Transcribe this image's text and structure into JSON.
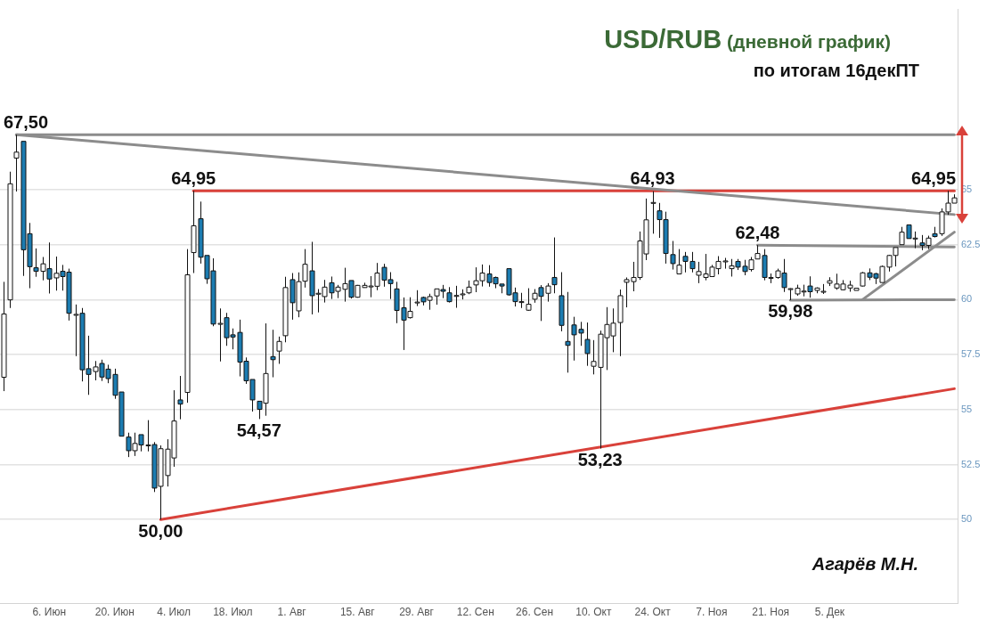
{
  "chart_data": {
    "type": "candlestick",
    "title": "USD/RUB (дневной график)",
    "subtitle": "по итогам 16декПТ",
    "annotations": [
      {
        "text": "67,50",
        "y": 67.5
      },
      {
        "text": "64,95",
        "y": 64.95
      },
      {
        "text": "50,00",
        "y": 50.0
      },
      {
        "text": "54,57",
        "y": 54.57
      },
      {
        "text": "53,23",
        "y": 53.23
      },
      {
        "text": "64,93",
        "y": 64.93
      },
      {
        "text": "62,48",
        "y": 62.48
      },
      {
        "text": "59,98",
        "y": 59.98
      },
      {
        "text": "64,95",
        "y": 64.95
      },
      "Агарёв М.Н."
    ],
    "colors": [
      "#ffffff",
      "#ffffff",
      "#ffffff",
      "#1c7cb1",
      "#1c7cb1",
      "#1c7cb1",
      "#ffffff",
      "#1c7cb1",
      "#ffffff",
      "#1c7cb1",
      "#1c7cb1",
      "#ffffff",
      "#1c7cb1",
      "#1c7cb1",
      "#ffffff",
      "#1c7cb1",
      "#1c7cb1",
      "#1c7cb1",
      "#1c7cb1",
      "#1c7cb1",
      "#ffffff",
      "#1c7cb1",
      "#ffffff",
      "#1c7cb1",
      "#ffffff",
      "#ffffff",
      "#ffffff",
      "#1c7cb1",
      "#ffffff",
      "#ffffff",
      "#1c7cb1",
      "#1c7cb1",
      "#1c7cb1",
      "#ffffff",
      "#1c7cb1",
      "#1c7cb1",
      "#1c7cb1",
      "#1c7cb1",
      "#1c7cb1",
      "#1c7cb1",
      "#ffffff",
      "#1c7cb1",
      "#ffffff",
      "#ffffff",
      "#1c7cb1",
      "#ffffff",
      "#ffffff",
      "#1c7cb1",
      "#ffffff",
      "#ffffff",
      "#1c7cb1",
      "#ffffff",
      "#ffffff",
      "#1c7cb1",
      "#ffffff",
      "#ffffff",
      "#ffffff",
      "#ffffff",
      "#1c7cb1",
      "#1c7cb1",
      "#1c7cb1",
      "#1c7cb1",
      "#ffffff",
      "#ffffff",
      "#1c7cb1",
      "#ffffff",
      "#ffffff",
      "#1c7cb1",
      "#1c7cb1",
      "#ffffff",
      "#ffffff",
      "#ffffff",
      "#ffffff",
      "#ffffff",
      "#1c7cb1",
      "#1c7cb1",
      "#1c7cb1",
      "#1c7cb1",
      "#1c7cb1",
      "#ffffff",
      "#ffffff",
      "#ffffff",
      "#1c7cb1",
      "#ffffff",
      "#1c7cb1",
      "#1c7cb1",
      "#1c7cb1",
      "#1c7cb1",
      "#1c7cb1",
      "#1c7cb1",
      "#ffffff",
      "#ffffff",
      "#ffffff",
      "#ffffff",
      "#ffffff",
      "#ffffff",
      "#ffffff",
      "#ffffff",
      "#ffffff",
      "#ffffff",
      "#1c7cb1",
      "#1c7cb1",
      "#1c7cb1",
      "#ffffff",
      "#1c7cb1",
      "#1c7cb1",
      "#ffffff",
      "#ffffff",
      "#ffffff",
      "#ffffff",
      "#ffffff",
      "#ffffff",
      "#1c7cb1",
      "#1c7cb1",
      "#ffffff",
      "#ffffff",
      "#1c7cb1",
      "#ffffff",
      "#ffffff",
      "#1c7cb1",
      "#ffffff",
      "#ffffff",
      "#ffffff",
      "#1c7cb1",
      "#ffffff",
      "#ffffff",
      "#ffffff",
      "#ffffff",
      "#ffffff",
      "#ffffff",
      "#ffffff",
      "#ffffff",
      "#1c7cb1",
      "#1c7cb1",
      "#ffffff",
      "#ffffff",
      "#ffffff",
      "#ffffff",
      "#1c7cb1",
      "#ffffff",
      "#1c7cb1",
      "#ffffff",
      "#1c7cb1",
      "#ffffff",
      "#ffffff",
      "#ffffff"
    ],
    "marker": "none",
    "grid": "y",
    "ylim": [
      46.2,
      73.2
    ],
    "categories": [
      null,
      null,
      null,
      null,
      null,
      null,
      null,
      "6. Июн",
      null,
      null,
      null,
      null,
      null,
      null,
      null,
      null,
      null,
      "20. Июн",
      null,
      null,
      null,
      null,
      null,
      null,
      null,
      null,
      "4. Июл",
      null,
      null,
      null,
      null,
      null,
      null,
      null,
      null,
      "18. Июл",
      null,
      null,
      null,
      null,
      null,
      null,
      null,
      null,
      "1. Авг",
      null,
      null,
      null,
      null,
      null,
      null,
      null,
      null,
      null,
      "15. Авг",
      null,
      null,
      null,
      null,
      null,
      null,
      null,
      null,
      "29. Авг",
      null,
      null,
      null,
      null,
      null,
      null,
      null,
      null,
      "12. Сен",
      null,
      null,
      null,
      null,
      null,
      null,
      null,
      null,
      "26. Сен",
      null,
      null,
      null,
      null,
      null,
      null,
      null,
      null,
      "10. Окт",
      null,
      null,
      null,
      null,
      null,
      null,
      null,
      null,
      "24. Окт",
      null,
      null,
      null,
      null,
      null,
      null,
      null,
      null,
      "7. Ноя",
      null,
      null,
      null,
      null,
      null,
      null,
      null,
      null,
      "21. Ноя",
      null,
      null,
      null,
      null,
      null,
      null,
      null,
      null,
      "5. Дек",
      null,
      null,
      null,
      null,
      null,
      null,
      null,
      null,
      null,
      null,
      null,
      null,
      null,
      null,
      null,
      null,
      null,
      null,
      null
    ],
    "yticks": [
      50,
      52.5,
      55,
      57.5,
      60,
      62.5,
      65
    ],
    "ohlc": [
      [
        56.47,
        60.81,
        55.84,
        59.35
      ],
      [
        59.99,
        65.82,
        59.62,
        65.27
      ],
      [
        66.44,
        67.5,
        64.92,
        66.71
      ],
      [
        67.2,
        67.2,
        61.08,
        62.27
      ],
      [
        63.0,
        63.49,
        60.52,
        61.5
      ],
      [
        61.45,
        62.33,
        61.04,
        61.29
      ],
      [
        61.29,
        61.94,
        60.88,
        61.63
      ],
      [
        61.41,
        62.6,
        60.28,
        60.94
      ],
      [
        60.99,
        61.96,
        60.41,
        61.2
      ],
      [
        61.29,
        61.58,
        60.41,
        61.05
      ],
      [
        61.25,
        61.41,
        59.05,
        59.38
      ],
      [
        59.33,
        59.78,
        57.43,
        59.33
      ],
      [
        59.38,
        59.62,
        56.28,
        56.81
      ],
      [
        56.86,
        58.36,
        55.67,
        56.6
      ],
      [
        56.73,
        57.21,
        56.33,
        56.94
      ],
      [
        57.1,
        57.27,
        56.3,
        56.48
      ],
      [
        56.84,
        57.04,
        56.2,
        56.41
      ],
      [
        56.6,
        56.86,
        55.49,
        55.65
      ],
      [
        55.8,
        55.8,
        53.79,
        53.79
      ],
      [
        53.75,
        53.95,
        52.84,
        53.13
      ],
      [
        53.13,
        53.95,
        52.89,
        53.46
      ],
      [
        53.86,
        53.86,
        53.1,
        53.39
      ],
      [
        53.39,
        54.52,
        53.1,
        53.39
      ],
      [
        53.41,
        53.52,
        51.25,
        51.43
      ],
      [
        51.51,
        53.37,
        50.0,
        53.22
      ],
      [
        52.0,
        53.65,
        51.5,
        53.2
      ],
      [
        52.8,
        55.88,
        52.4,
        54.48
      ],
      [
        55.44,
        56.53,
        54.56,
        55.25
      ],
      [
        55.78,
        62.3,
        55.31,
        61.13
      ],
      [
        62.14,
        64.95,
        61.21,
        63.36
      ],
      [
        63.68,
        64.46,
        61.64,
        61.93
      ],
      [
        62.01,
        62.01,
        60.72,
        60.95
      ],
      [
        61.31,
        61.88,
        58.79,
        58.89
      ],
      [
        58.92,
        59.6,
        57.19,
        58.92
      ],
      [
        59.18,
        59.4,
        57.9,
        58.27
      ],
      [
        58.4,
        58.69,
        57.74,
        58.3
      ],
      [
        58.51,
        59.09,
        56.51,
        57.16
      ],
      [
        57.2,
        57.37,
        56.17,
        56.31
      ],
      [
        56.37,
        56.37,
        54.91,
        55.44
      ],
      [
        55.38,
        55.38,
        54.57,
        55.01
      ],
      [
        55.29,
        58.92,
        54.72,
        56.64
      ],
      [
        57.41,
        58.63,
        56.47,
        57.27
      ],
      [
        57.66,
        58.32,
        57.08,
        58.1
      ],
      [
        58.36,
        61.04,
        58.06,
        60.55
      ],
      [
        60.91,
        61.21,
        59.09,
        59.86
      ],
      [
        59.49,
        61.24,
        59.2,
        60.82
      ],
      [
        60.84,
        62.3,
        60.55,
        61.61
      ],
      [
        61.31,
        62.63,
        59.33,
        60.18
      ],
      [
        60.29,
        60.48,
        59.42,
        60.29
      ],
      [
        60.14,
        60.9,
        59.87,
        60.57
      ],
      [
        60.77,
        61.05,
        60.03,
        60.31
      ],
      [
        60.38,
        60.67,
        60.07,
        60.57
      ],
      [
        60.47,
        61.45,
        59.91,
        60.73
      ],
      [
        60.87,
        60.87,
        60.05,
        60.11
      ],
      [
        60.11,
        60.67,
        60.09,
        60.65
      ],
      [
        60.55,
        60.77,
        60.54,
        60.65
      ],
      [
        60.62,
        61.07,
        60.11,
        60.62
      ],
      [
        60.61,
        61.67,
        60.43,
        61.21
      ],
      [
        61.47,
        61.63,
        60.59,
        60.89
      ],
      [
        60.91,
        61.25,
        60.03,
        60.73
      ],
      [
        60.49,
        60.81,
        58.93,
        59.51
      ],
      [
        59.63,
        60.1,
        57.71,
        59.07
      ],
      [
        59.18,
        60.11,
        59.14,
        59.47
      ],
      [
        59.89,
        60.43,
        59.71,
        59.89
      ],
      [
        60.1,
        60.14,
        59.74,
        59.9
      ],
      [
        59.97,
        60.27,
        59.54,
        60.14
      ],
      [
        60.17,
        60.49,
        59.77,
        60.49
      ],
      [
        60.46,
        60.67,
        60.07,
        60.38
      ],
      [
        60.31,
        60.57,
        59.87,
        59.91
      ],
      [
        60.19,
        60.63,
        59.63,
        60.19
      ],
      [
        60.26,
        60.47,
        60.01,
        60.26
      ],
      [
        60.31,
        60.87,
        60.25,
        60.57
      ],
      [
        60.67,
        61.47,
        60.34,
        60.86
      ],
      [
        60.86,
        61.6,
        60.6,
        61.21
      ],
      [
        61.17,
        61.57,
        60.59,
        60.78
      ],
      [
        61.01,
        61.05,
        60.52,
        60.72
      ],
      [
        60.71,
        60.71,
        60.29,
        60.62
      ],
      [
        61.41,
        61.41,
        60.18,
        60.22
      ],
      [
        60.31,
        60.55,
        59.69,
        59.91
      ],
      [
        59.91,
        60.31,
        59.62,
        59.91
      ],
      [
        59.52,
        60.52,
        59.49,
        59.79
      ],
      [
        60.02,
        60.48,
        59.86,
        60.29
      ],
      [
        60.55,
        60.66,
        59.03,
        60.15
      ],
      [
        60.29,
        60.75,
        59.91,
        60.62
      ],
      [
        61.01,
        62.83,
        60.29,
        60.68
      ],
      [
        60.18,
        61.25,
        58.56,
        58.83
      ],
      [
        58.1,
        60.35,
        56.68,
        57.92
      ],
      [
        58.85,
        59.22,
        57.23,
        58.4
      ],
      [
        58.65,
        58.99,
        57.9,
        58.48
      ],
      [
        58.19,
        58.96,
        56.99,
        57.55
      ],
      [
        56.97,
        58.16,
        56.6,
        57.19
      ],
      [
        56.92,
        58.59,
        53.23,
        58.43
      ],
      [
        58.27,
        59.66,
        56.8,
        58.87
      ],
      [
        58.35,
        59.6,
        57.61,
        58.93
      ],
      [
        58.96,
        60.46,
        57.43,
        60.18
      ],
      [
        60.79,
        61.01,
        59.65,
        60.91
      ],
      [
        60.82,
        61.72,
        60.38,
        61.01
      ],
      [
        61.01,
        63.1,
        60.9,
        62.67
      ],
      [
        62.08,
        64.6,
        61.8,
        63.63
      ],
      [
        64.42,
        64.93,
        63.0,
        64.42
      ],
      [
        64.04,
        64.4,
        62.81,
        63.64
      ],
      [
        63.64,
        64.0,
        61.64,
        62.1
      ],
      [
        62.05,
        62.67,
        61.37,
        61.64
      ],
      [
        61.17,
        62.3,
        61.17,
        61.57
      ],
      [
        61.97,
        62.17,
        61.24,
        61.74
      ],
      [
        61.74,
        62.17,
        61.24,
        61.41
      ],
      [
        61.11,
        61.72,
        60.75,
        61.28
      ],
      [
        61.01,
        62.08,
        60.88,
        61.17
      ],
      [
        61.05,
        61.58,
        61.05,
        61.48
      ],
      [
        61.41,
        61.98,
        61.15,
        61.74
      ],
      [
        61.72,
        61.9,
        61.41,
        61.76
      ],
      [
        61.41,
        61.85,
        61.05,
        61.54
      ],
      [
        61.74,
        61.85,
        61.35,
        61.48
      ],
      [
        61.52,
        61.81,
        61.11,
        61.28
      ],
      [
        61.37,
        61.94,
        61.28,
        61.81
      ],
      [
        61.85,
        62.48,
        61.85,
        62.1
      ],
      [
        62.01,
        62.3,
        60.88,
        61.01
      ],
      [
        61.01,
        61.19,
        60.75,
        61.01
      ],
      [
        61.01,
        61.41,
        60.95,
        61.31
      ],
      [
        61.21,
        61.85,
        60.35,
        60.55
      ],
      [
        60.5,
        60.52,
        59.98,
        60.5
      ],
      [
        60.26,
        60.68,
        60.18,
        60.52
      ],
      [
        60.39,
        60.68,
        60.15,
        60.39
      ],
      [
        60.62,
        61.06,
        60.09,
        60.36
      ],
      [
        60.42,
        60.56,
        60.29,
        60.53
      ],
      [
        60.38,
        60.71,
        60.26,
        60.38
      ],
      [
        60.75,
        61.02,
        60.62,
        60.86
      ],
      [
        60.53,
        61.18,
        60.45,
        60.71
      ],
      [
        60.45,
        60.89,
        60.42,
        60.71
      ],
      [
        60.53,
        60.86,
        60.36,
        60.66
      ],
      [
        60.42,
        60.52,
        60.42,
        60.52
      ],
      [
        60.62,
        61.26,
        60.6,
        61.22
      ],
      [
        61.22,
        61.42,
        60.89,
        61.02
      ],
      [
        61.18,
        61.22,
        60.71,
        60.98
      ],
      [
        60.78,
        61.55,
        60.78,
        61.51
      ],
      [
        61.48,
        62.04,
        61.28,
        62.01
      ],
      [
        62.01,
        62.37,
        61.51,
        62.37
      ],
      [
        62.5,
        63.31,
        62.5,
        63.07
      ],
      [
        63.4,
        63.4,
        62.78,
        62.78
      ],
      [
        62.8,
        63.1,
        62.34,
        62.8
      ],
      [
        62.58,
        62.94,
        62.25,
        62.47
      ],
      [
        62.47,
        62.91,
        62.3,
        62.8
      ],
      [
        63.0,
        63.31,
        62.83,
        62.87
      ],
      [
        63.0,
        64.15,
        62.9,
        63.99
      ],
      [
        63.99,
        64.95,
        63.86,
        64.39
      ],
      [
        64.39,
        64.79,
        64.39,
        64.63
      ]
    ],
    "series": [
      {
        "type": "line",
        "color": "#8c8c8c",
        "values": [
          null,
          null,
          67.5,
          null,
          null,
          null,
          null,
          null,
          null,
          null,
          null,
          null,
          null,
          null,
          null,
          null,
          null,
          null,
          null,
          null,
          null,
          null,
          null,
          null,
          null,
          null,
          null,
          null,
          null,
          null,
          null,
          null,
          null,
          null,
          null,
          null,
          null,
          null,
          null,
          null,
          null,
          null,
          null,
          null,
          null,
          null,
          null,
          null,
          null,
          null,
          null,
          null,
          null,
          null,
          null,
          null,
          null,
          null,
          null,
          null,
          null,
          null,
          null,
          null,
          null,
          null,
          null,
          null,
          null,
          null,
          null,
          null,
          null,
          null,
          null,
          null,
          null,
          null,
          null,
          null,
          null,
          null,
          null,
          null,
          null,
          null,
          null,
          null,
          null,
          null,
          null,
          null,
          null,
          null,
          null,
          null,
          null,
          null,
          null,
          null,
          null,
          null,
          null,
          null,
          null,
          null,
          null,
          null,
          null,
          null,
          null,
          null,
          null,
          null,
          null,
          null,
          null,
          null,
          null,
          null,
          null,
          null,
          null,
          null,
          null,
          null,
          null,
          null,
          null,
          null,
          null,
          null,
          null,
          null,
          null,
          null,
          null,
          null,
          null,
          null,
          null,
          null,
          null,
          null,
          null,
          67.5
        ]
      },
      {
        "type": "line",
        "color": "#8c8c8c",
        "values": [
          null,
          null,
          67.5,
          null,
          null,
          null,
          null,
          null,
          null,
          null,
          null,
          null,
          null,
          null,
          null,
          null,
          null,
          null,
          null,
          null,
          null,
          null,
          null,
          null,
          null,
          null,
          null,
          null,
          null,
          null,
          null,
          null,
          null,
          null,
          null,
          null,
          null,
          null,
          null,
          null,
          null,
          null,
          null,
          null,
          null,
          null,
          null,
          null,
          null,
          null,
          null,
          null,
          null,
          null,
          null,
          null,
          null,
          null,
          null,
          null,
          null,
          null,
          null,
          null,
          null,
          null,
          null,
          null,
          null,
          null,
          null,
          null,
          null,
          null,
          null,
          null,
          null,
          null,
          null,
          null,
          null,
          null,
          null,
          null,
          null,
          null,
          null,
          null,
          null,
          null,
          null,
          null,
          null,
          null,
          null,
          null,
          null,
          null,
          null,
          null,
          null,
          null,
          null,
          null,
          null,
          null,
          null,
          null,
          null,
          null,
          null,
          null,
          null,
          null,
          null,
          null,
          null,
          null,
          null,
          null,
          null,
          null,
          null,
          null,
          null,
          null,
          null,
          null,
          null,
          null,
          null,
          null,
          null,
          null,
          null,
          null,
          null,
          null,
          null,
          null,
          null,
          null,
          null,
          null,
          null,
          63.87
        ]
      },
      {
        "type": "line",
        "color": "#d9413a",
        "values": [
          null,
          null,
          null,
          null,
          null,
          null,
          null,
          null,
          null,
          null,
          null,
          null,
          null,
          null,
          null,
          null,
          null,
          null,
          null,
          null,
          null,
          null,
          null,
          null,
          null,
          null,
          null,
          null,
          null,
          64.95,
          null,
          null,
          null,
          null,
          null,
          null,
          null,
          null,
          null,
          null,
          null,
          null,
          null,
          null,
          null,
          null,
          null,
          null,
          null,
          null,
          null,
          null,
          null,
          null,
          null,
          null,
          null,
          null,
          null,
          null,
          null,
          null,
          null,
          null,
          null,
          null,
          null,
          null,
          null,
          null,
          null,
          null,
          null,
          null,
          null,
          null,
          null,
          null,
          null,
          null,
          null,
          null,
          null,
          null,
          null,
          null,
          null,
          null,
          null,
          null,
          null,
          null,
          null,
          null,
          null,
          null,
          null,
          null,
          null,
          null,
          null,
          null,
          null,
          null,
          null,
          null,
          null,
          null,
          null,
          null,
          null,
          null,
          null,
          null,
          null,
          null,
          null,
          null,
          null,
          null,
          null,
          null,
          null,
          null,
          null,
          null,
          null,
          null,
          null,
          null,
          null,
          null,
          null,
          null,
          null,
          null,
          null,
          null,
          null,
          null,
          null,
          null,
          null,
          null,
          null,
          64.95
        ]
      },
      {
        "type": "line",
        "color": "#d9413a",
        "values": [
          null,
          null,
          null,
          null,
          null,
          null,
          null,
          null,
          null,
          null,
          null,
          null,
          null,
          null,
          null,
          null,
          null,
          null,
          null,
          null,
          null,
          null,
          null,
          null,
          50.0,
          null,
          null,
          null,
          null,
          null,
          null,
          null,
          null,
          null,
          null,
          null,
          null,
          null,
          null,
          null,
          null,
          null,
          null,
          null,
          null,
          null,
          null,
          null,
          null,
          null,
          null,
          null,
          null,
          null,
          null,
          null,
          null,
          null,
          null,
          null,
          null,
          null,
          null,
          null,
          null,
          null,
          null,
          null,
          null,
          null,
          null,
          null,
          null,
          null,
          null,
          null,
          null,
          null,
          null,
          null,
          null,
          null,
          null,
          null,
          null,
          null,
          null,
          null,
          null,
          null,
          null,
          null,
          null,
          null,
          null,
          null,
          null,
          null,
          null,
          null,
          null,
          null,
          null,
          null,
          null,
          null,
          null,
          null,
          null,
          null,
          null,
          null,
          null,
          null,
          null,
          null,
          null,
          null,
          null,
          null,
          null,
          null,
          null,
          null,
          null,
          null,
          null,
          null,
          null,
          null,
          null,
          null,
          null,
          null,
          null,
          null,
          null,
          null,
          null,
          null,
          null,
          null,
          null,
          null,
          null,
          55.95
        ]
      },
      {
        "type": "line",
        "color": "#8c8c8c",
        "values": [
          null,
          null,
          null,
          null,
          null,
          null,
          null,
          null,
          null,
          null,
          null,
          null,
          null,
          null,
          null,
          null,
          null,
          null,
          null,
          null,
          null,
          null,
          null,
          null,
          null,
          null,
          null,
          null,
          null,
          null,
          null,
          null,
          null,
          null,
          null,
          null,
          null,
          null,
          null,
          null,
          null,
          null,
          null,
          null,
          null,
          null,
          null,
          null,
          null,
          null,
          null,
          null,
          null,
          null,
          null,
          null,
          null,
          null,
          null,
          null,
          null,
          null,
          null,
          null,
          null,
          null,
          null,
          null,
          null,
          null,
          null,
          null,
          null,
          null,
          null,
          null,
          null,
          null,
          null,
          null,
          null,
          null,
          null,
          null,
          null,
          null,
          null,
          null,
          null,
          null,
          null,
          null,
          null,
          null,
          null,
          null,
          null,
          null,
          null,
          null,
          null,
          null,
          null,
          null,
          null,
          null,
          null,
          null,
          null,
          null,
          null,
          null,
          null,
          null,
          null,
          62.48,
          null,
          null,
          null,
          null,
          null,
          null,
          null,
          null,
          null,
          null,
          null,
          null,
          null,
          null,
          null,
          null,
          null,
          null,
          null,
          null,
          null,
          null,
          null,
          null,
          null,
          null,
          null,
          null,
          null,
          62.4
        ]
      },
      {
        "type": "line",
        "color": "#8c8c8c",
        "values": [
          null,
          null,
          null,
          null,
          null,
          null,
          null,
          null,
          null,
          null,
          null,
          null,
          null,
          null,
          null,
          null,
          null,
          null,
          null,
          null,
          null,
          null,
          null,
          null,
          null,
          null,
          null,
          null,
          null,
          null,
          null,
          null,
          null,
          null,
          null,
          null,
          null,
          null,
          null,
          null,
          null,
          null,
          null,
          null,
          null,
          null,
          null,
          null,
          null,
          null,
          null,
          null,
          null,
          null,
          null,
          null,
          null,
          null,
          null,
          null,
          null,
          null,
          null,
          null,
          null,
          null,
          null,
          null,
          null,
          null,
          null,
          null,
          null,
          null,
          null,
          null,
          null,
          null,
          null,
          null,
          null,
          null,
          null,
          null,
          null,
          null,
          null,
          null,
          null,
          null,
          null,
          null,
          null,
          null,
          null,
          null,
          null,
          null,
          null,
          null,
          null,
          null,
          null,
          null,
          null,
          null,
          null,
          null,
          null,
          null,
          null,
          null,
          null,
          null,
          null,
          null,
          null,
          null,
          null,
          null,
          59.98,
          null,
          null,
          null,
          null,
          null,
          null,
          null,
          null,
          null,
          null,
          null,
          null,
          null,
          null,
          null,
          null,
          null,
          null,
          null,
          null,
          null,
          null,
          null,
          null,
          60.0
        ]
      },
      {
        "type": "line",
        "color": "#8c8c8c",
        "values": [
          null,
          null,
          null,
          null,
          null,
          null,
          null,
          null,
          null,
          null,
          null,
          null,
          null,
          null,
          null,
          null,
          null,
          null,
          null,
          null,
          null,
          null,
          null,
          null,
          null,
          null,
          null,
          null,
          null,
          null,
          null,
          null,
          null,
          null,
          null,
          null,
          null,
          null,
          null,
          null,
          null,
          null,
          null,
          null,
          null,
          null,
          null,
          null,
          null,
          null,
          null,
          null,
          null,
          null,
          null,
          null,
          null,
          null,
          null,
          null,
          null,
          null,
          null,
          null,
          null,
          null,
          null,
          null,
          null,
          null,
          null,
          null,
          null,
          null,
          null,
          null,
          null,
          null,
          null,
          null,
          null,
          null,
          null,
          null,
          null,
          null,
          null,
          null,
          null,
          null,
          null,
          null,
          null,
          null,
          null,
          null,
          null,
          null,
          null,
          null,
          null,
          null,
          null,
          null,
          null,
          null,
          null,
          null,
          null,
          null,
          null,
          null,
          null,
          null,
          null,
          null,
          null,
          null,
          null,
          null,
          null,
          null,
          null,
          null,
          null,
          null,
          null,
          null,
          null,
          null,
          null,
          60.0,
          null,
          null,
          null,
          null,
          null,
          null,
          null,
          null,
          null,
          null,
          null,
          null,
          null,
          63.07
        ]
      }
    ]
  }
}
